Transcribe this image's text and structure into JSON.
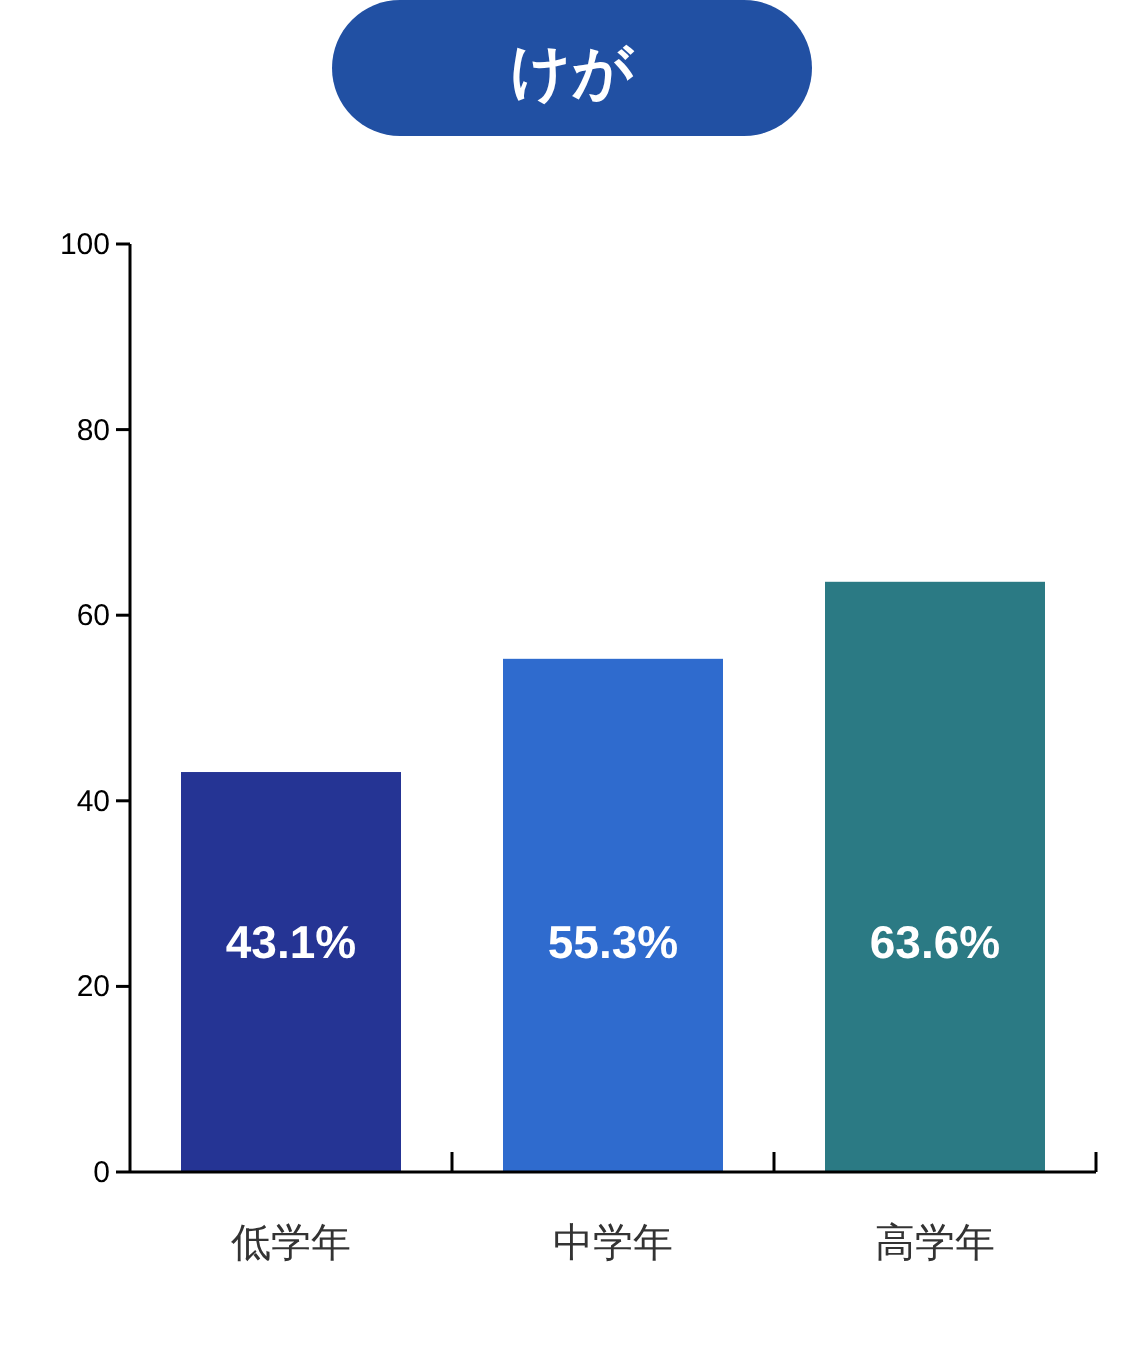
{
  "chart_data": {
    "type": "bar",
    "title": "けが",
    "categories": [
      "低学年",
      "中学年",
      "高学年"
    ],
    "values": [
      43.1,
      55.3,
      63.6
    ],
    "colors": [
      "#253494",
      "#2f6bce",
      "#2b7a84"
    ],
    "value_labels": [
      "43.1%",
      "55.3%",
      "63.6%"
    ],
    "ylim": [
      0,
      100
    ],
    "yticks": [
      0,
      20,
      40,
      60,
      80,
      100
    ],
    "grid": false
  }
}
